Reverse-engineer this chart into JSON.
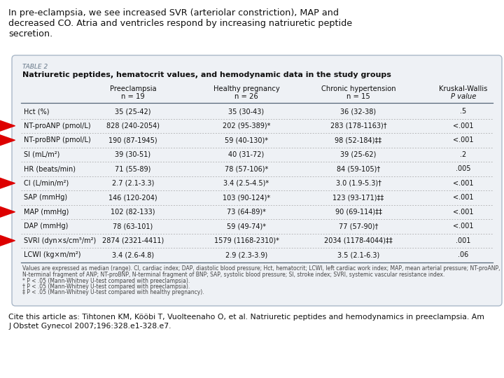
{
  "title_lines": [
    "In pre-eclampsia, we see increased SVR (arteriolar constriction), MAP and",
    "decreased CO. Atria and ventricles respond by increasing natriuretic peptide",
    "secretion."
  ],
  "table_title": "TABLE 2",
  "table_subtitle": "Natriuretic peptides, hematocrit values, and hemodynamic data in the study groups",
  "col_headers": [
    "",
    "Preeclampsia\nn = 19",
    "Healthy pregnancy\nn = 26",
    "Chronic hypertension\nn = 15",
    "Kruskal-Wallis\nP value"
  ],
  "rows": [
    [
      "Hct (%)",
      "35 (25-42)",
      "35 (30-43)",
      "36 (32-38)",
      ".5"
    ],
    [
      "NT-proANP (pmol/L)",
      "828 (240-2054)",
      "202 (95-389)*",
      "283 (178-1163)†",
      "<.001"
    ],
    [
      "NT-proBNP (pmol/L)",
      "190 (87-1945)",
      "59 (40-130)*",
      "98 (52-184)‡‡",
      "<.001"
    ],
    [
      "SI (mL/m²)",
      "39 (30-51)",
      "40 (31-72)",
      "39 (25-62)",
      ".2"
    ],
    [
      "HR (beats/min)",
      "71 (55-89)",
      "78 (57-106)*",
      "84 (59-105)†",
      ".005"
    ],
    [
      "CI (L/min/m²)",
      "2.7 (2.1-3.3)",
      "3.4 (2.5-4.5)*",
      "3.0 (1.9-5.3)†",
      "<.001"
    ],
    [
      "SAP (mmHg)",
      "146 (120-204)",
      "103 (90-124)*",
      "123 (93-171)‡‡",
      "<.001"
    ],
    [
      "MAP (mmHg)",
      "102 (82-133)",
      "73 (64-89)*",
      "90 (69-114)‡‡",
      "<.001"
    ],
    [
      "DAP (mmHg)",
      "78 (63-101)",
      "59 (49-74)*",
      "77 (57-90)†",
      "<.001"
    ],
    [
      "SVRI (dyn×s/cm⁵/m²)",
      "2874 (2321-4411)",
      "1579 (1168-2310)*",
      "2034 (1178-4044)‡‡",
      ".001"
    ],
    [
      "LCWI (kg×m/m²)",
      "3.4 (2.6-4.8)",
      "2.9 (2.3-3.9)",
      "3.5 (2.1-6.3)",
      ".06"
    ]
  ],
  "footnote_lines": [
    "Values are expressed as median (range). CI, cardiac index; DAP, diastolic blood pressure; Hct, hematocrit; LCWI, left cardiac work index; MAP, mean arterial pressure; NT-proANP,",
    "N-terminal fragment of ANP; NT-proBNP, N-terminal fragment of BNP; SAP, systolic blood pressure; SI, stroke index; SVRI, systemic vascular resistance index.",
    "* P < .05 (Mann-Whitney U-test compared with preeclampsia).",
    "† P < .05 (Mann-Whitney U-test compared with preeclampsia).",
    "‡ P < .05 (Mann-Whitney U-test compared with healthy pregnancy)."
  ],
  "cite_lines": [
    "Cite this article as: Tihtonen KM, Kööbi T, Vuolteenaho O, et al. Natriuretic peptides and hemodynamics in preeclampsia. Am",
    "J Obstet Gynecol 2007;196:328.e1-328.e7."
  ],
  "arrow_rows": [
    1,
    2,
    5,
    7,
    9
  ],
  "arrow_color": "#dd0000",
  "table_bg": "#eef1f5",
  "table_border": "#aab8c8",
  "fig_bg": "#ffffff",
  "text_color": "#111111",
  "faint_color": "#888888"
}
